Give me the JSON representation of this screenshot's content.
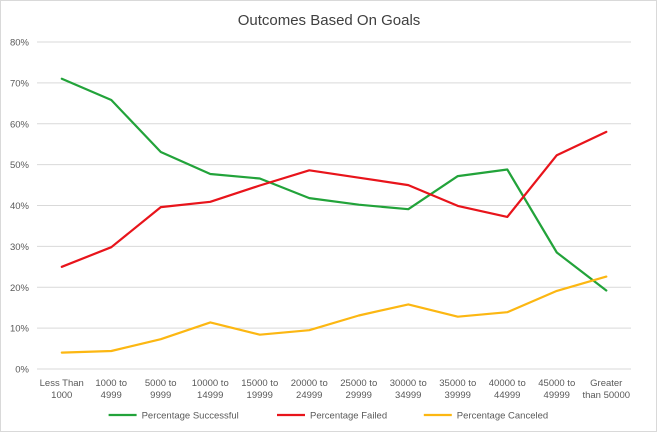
{
  "chart_data": {
    "type": "line",
    "title": "Outcomes Based On Goals",
    "xlabel": "",
    "ylabel": "",
    "ylim": [
      0,
      80
    ],
    "yticks": [
      "0%",
      "10%",
      "20%",
      "30%",
      "40%",
      "50%",
      "60%",
      "70%",
      "80%"
    ],
    "grid": true,
    "legend_position": "bottom",
    "categories": [
      [
        "Less Than",
        "1000"
      ],
      [
        "1000 to",
        "4999"
      ],
      [
        "5000 to",
        "9999"
      ],
      [
        "10000 to",
        "14999"
      ],
      [
        "15000 to",
        "19999"
      ],
      [
        "20000 to",
        "24999"
      ],
      [
        "25000 to",
        "29999"
      ],
      [
        "30000 to",
        "34999"
      ],
      [
        "35000 to",
        "39999"
      ],
      [
        "40000 to",
        "44999"
      ],
      [
        "45000 to",
        "49999"
      ],
      [
        "Greater",
        "than 50000"
      ]
    ],
    "series": [
      {
        "name": "Percentage Successful",
        "color": "#22a33a",
        "values": [
          71.0,
          65.8,
          53.1,
          47.7,
          46.6,
          41.8,
          40.2,
          39.1,
          47.2,
          48.8,
          28.5,
          19.2
        ]
      },
      {
        "name": "Percentage Failed",
        "color": "#e8141b",
        "values": [
          25.0,
          29.8,
          39.6,
          40.9,
          44.9,
          48.6,
          46.8,
          45.0,
          39.9,
          37.2,
          52.3,
          58.0
        ]
      },
      {
        "name": "Percentage Canceled",
        "color": "#fcb712",
        "values": [
          4.0,
          4.4,
          7.3,
          11.4,
          8.4,
          9.5,
          13.1,
          15.8,
          12.8,
          13.9,
          19.1,
          22.6
        ]
      }
    ]
  }
}
